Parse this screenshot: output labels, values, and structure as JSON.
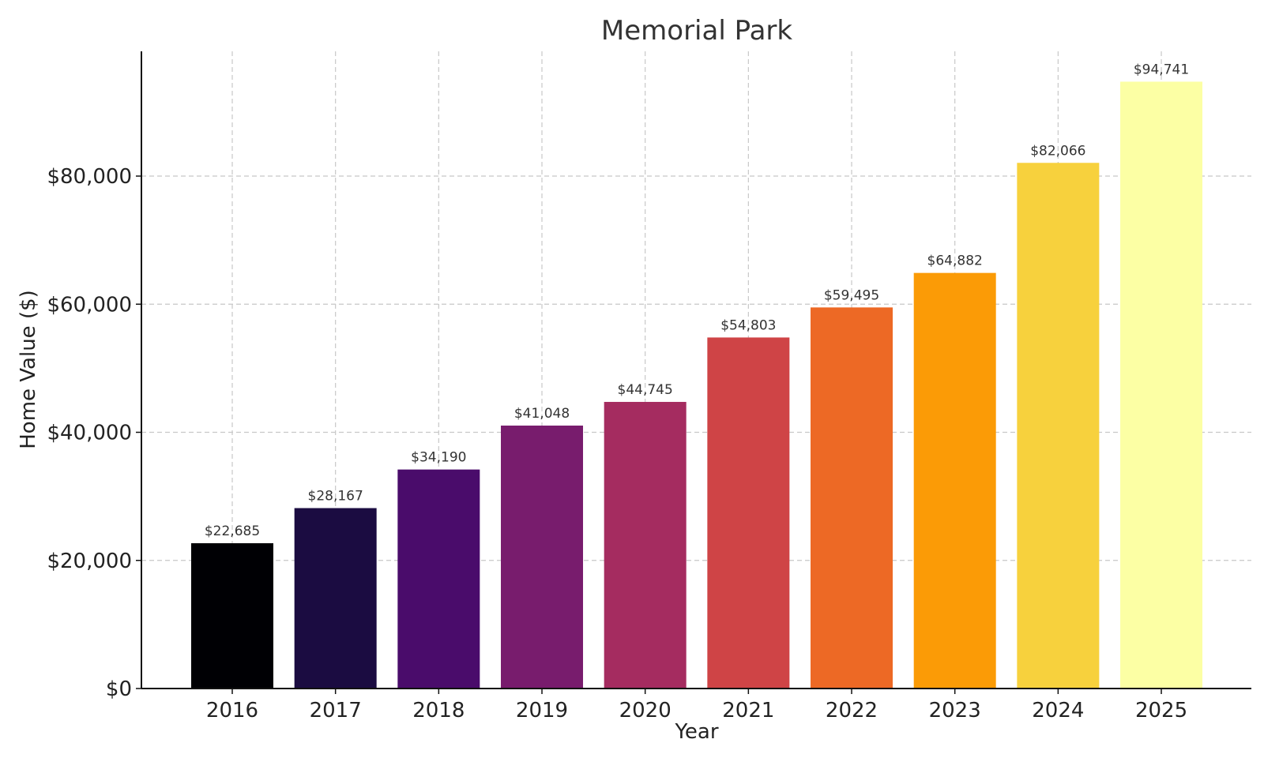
{
  "chart_data": {
    "type": "bar",
    "title": "Memorial Park",
    "xlabel": "Year",
    "ylabel": "Home Value ($)",
    "categories": [
      "2016",
      "2017",
      "2018",
      "2019",
      "2020",
      "2021",
      "2022",
      "2023",
      "2024",
      "2025"
    ],
    "values": [
      22685,
      28167,
      34190,
      41048,
      44745,
      54803,
      59495,
      64882,
      82066,
      94741
    ],
    "data_labels": [
      "$22,685",
      "$28,167",
      "$34,190",
      "$41,048",
      "$44,745",
      "$54,803",
      "$59,495",
      "$64,882",
      "$82,066",
      "$94,741"
    ],
    "colors": [
      "#000004",
      "#1b0c41",
      "#4a0c6b",
      "#781c6d",
      "#a52c60",
      "#cf4446",
      "#ed6925",
      "#fb9b06",
      "#f7d13d",
      "#fcffa4"
    ],
    "ylim": [
      0,
      99478
    ],
    "yticks": [
      0,
      20000,
      40000,
      60000,
      80000
    ],
    "ytick_labels": [
      "$0",
      "$20,000",
      "$40,000",
      "$60,000",
      "$80,000"
    ],
    "grid": true,
    "legend": "none"
  }
}
